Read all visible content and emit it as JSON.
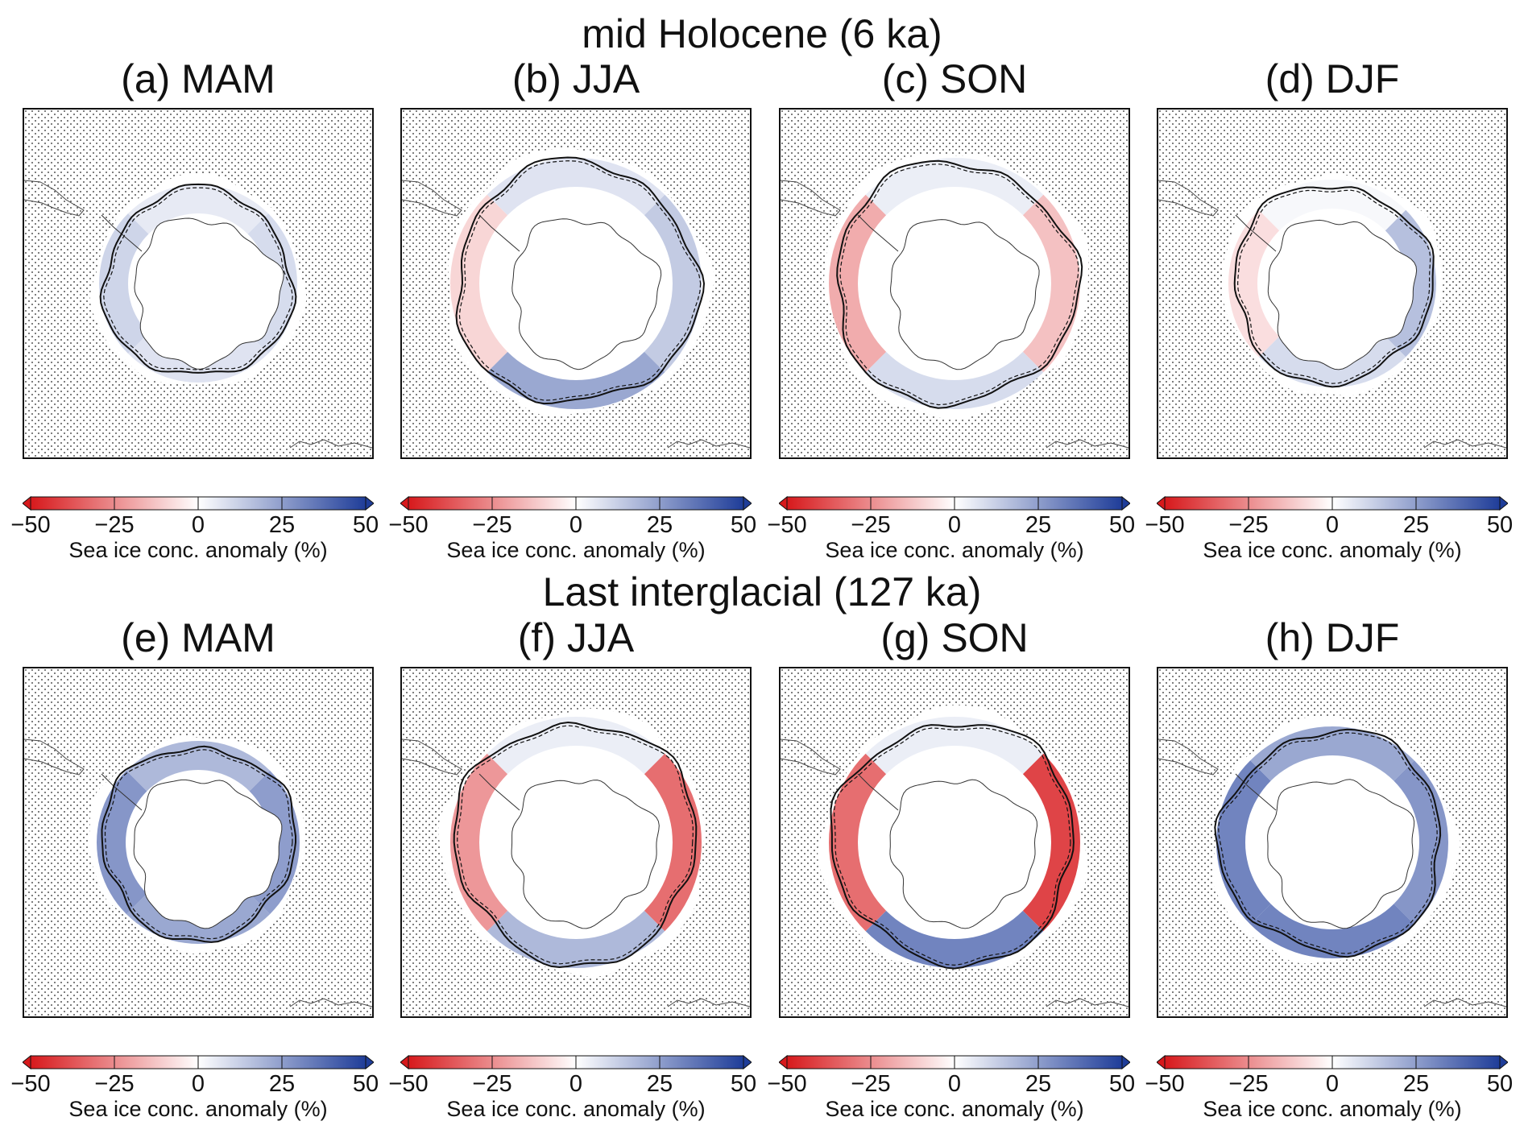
{
  "rows": [
    {
      "title": "mid Holocene (6 ka)",
      "panels": [
        {
          "label": "(a) MAM",
          "season": "MAM",
          "colorbar": {
            "ticks": [
              "−50",
              "−25",
              "0",
              "25",
              "50"
            ],
            "label": "Sea ice conc. anomaly (%)"
          },
          "anomaly": {
            "mean": 10,
            "east": 10,
            "west": 12,
            "south": 8,
            "north": 6,
            "extent": 0.78
          }
        },
        {
          "label": "(b) JJA",
          "season": "JJA",
          "colorbar": {
            "ticks": [
              "−50",
              "−25",
              "0",
              "25",
              "50"
            ],
            "label": "Sea ice conc. anomaly (%)"
          },
          "anomaly": {
            "mean": 6,
            "east": 15,
            "west": -10,
            "south": 25,
            "north": 8,
            "extent": 1.0
          }
        },
        {
          "label": "(c) SON",
          "season": "SON",
          "colorbar": {
            "ticks": [
              "−50",
              "−25",
              "0",
              "25",
              "50"
            ],
            "label": "Sea ice conc. anomaly (%)"
          },
          "anomaly": {
            "mean": -4,
            "east": -15,
            "west": -20,
            "south": 10,
            "north": 5,
            "extent": 1.0
          }
        },
        {
          "label": "(d) DJF",
          "season": "DJF",
          "colorbar": {
            "ticks": [
              "−50",
              "−25",
              "0",
              "25",
              "50"
            ],
            "label": "Sea ice conc. anomaly (%)"
          },
          "anomaly": {
            "mean": 4,
            "east": 18,
            "west": -8,
            "south": 10,
            "north": 2,
            "extent": 0.82
          }
        }
      ]
    },
    {
      "title": "Last interglacial (127 ka)",
      "panels": [
        {
          "label": "(e) MAM",
          "season": "MAM",
          "colorbar": {
            "ticks": [
              "−50",
              "−25",
              "0",
              "25",
              "50"
            ],
            "label": "Sea ice conc. anomaly (%)"
          },
          "anomaly": {
            "mean": 25,
            "east": 28,
            "west": 30,
            "south": 25,
            "north": 20,
            "extent": 0.8
          }
        },
        {
          "label": "(f) JJA",
          "season": "JJA",
          "colorbar": {
            "ticks": [
              "−50",
              "−25",
              "0",
              "25",
              "50"
            ],
            "label": "Sea ice conc. anomaly (%)"
          },
          "anomaly": {
            "mean": -10,
            "east": -35,
            "west": -25,
            "south": 20,
            "north": 5,
            "extent": 1.0
          }
        },
        {
          "label": "(g) SON",
          "season": "SON",
          "colorbar": {
            "ticks": [
              "−50",
              "−25",
              "0",
              "25",
              "50"
            ],
            "label": "Sea ice conc. anomaly (%)"
          },
          "anomaly": {
            "mean": -10,
            "east": -45,
            "west": -35,
            "south": 35,
            "north": 5,
            "extent": 1.0
          }
        },
        {
          "label": "(h) DJF",
          "season": "DJF",
          "colorbar": {
            "ticks": [
              "−50",
              "−25",
              "0",
              "25",
              "50"
            ],
            "label": "Sea ice conc. anomaly (%)"
          },
          "anomaly": {
            "mean": 30,
            "east": 30,
            "west": 35,
            "south": 35,
            "north": 25,
            "extent": 0.92
          }
        }
      ]
    }
  ],
  "chart_data": {
    "type": "heatmap",
    "variable": "Sea ice conc. anomaly (%)",
    "colormap": {
      "min": -50,
      "max": 50,
      "low_color": "#d7191c",
      "mid_color": "#ffffff",
      "high_color": "#1f3d99"
    },
    "colorbar_ticks": [
      -50,
      -25,
      0,
      25,
      50
    ],
    "stippling": "dots mark areas where anomaly is not significant",
    "contours": [
      "solid line: experiment sea ice edge",
      "dashed line: reference sea ice edge"
    ],
    "panels": [
      {
        "label": "(a) MAM",
        "period": "mid Holocene (6 ka)"
      },
      {
        "label": "(b) JJA",
        "period": "mid Holocene (6 ka)"
      },
      {
        "label": "(c) SON",
        "period": "mid Holocene (6 ka)"
      },
      {
        "label": "(d) DJF",
        "period": "mid Holocene (6 ka)"
      },
      {
        "label": "(e) MAM",
        "period": "Last interglacial (127 ka)"
      },
      {
        "label": "(f) JJA",
        "period": "Last interglacial (127 ka)"
      },
      {
        "label": "(g) SON",
        "period": "Last interglacial (127 ka)"
      },
      {
        "label": "(h) DJF",
        "period": "Last interglacial (127 ka)"
      }
    ]
  }
}
